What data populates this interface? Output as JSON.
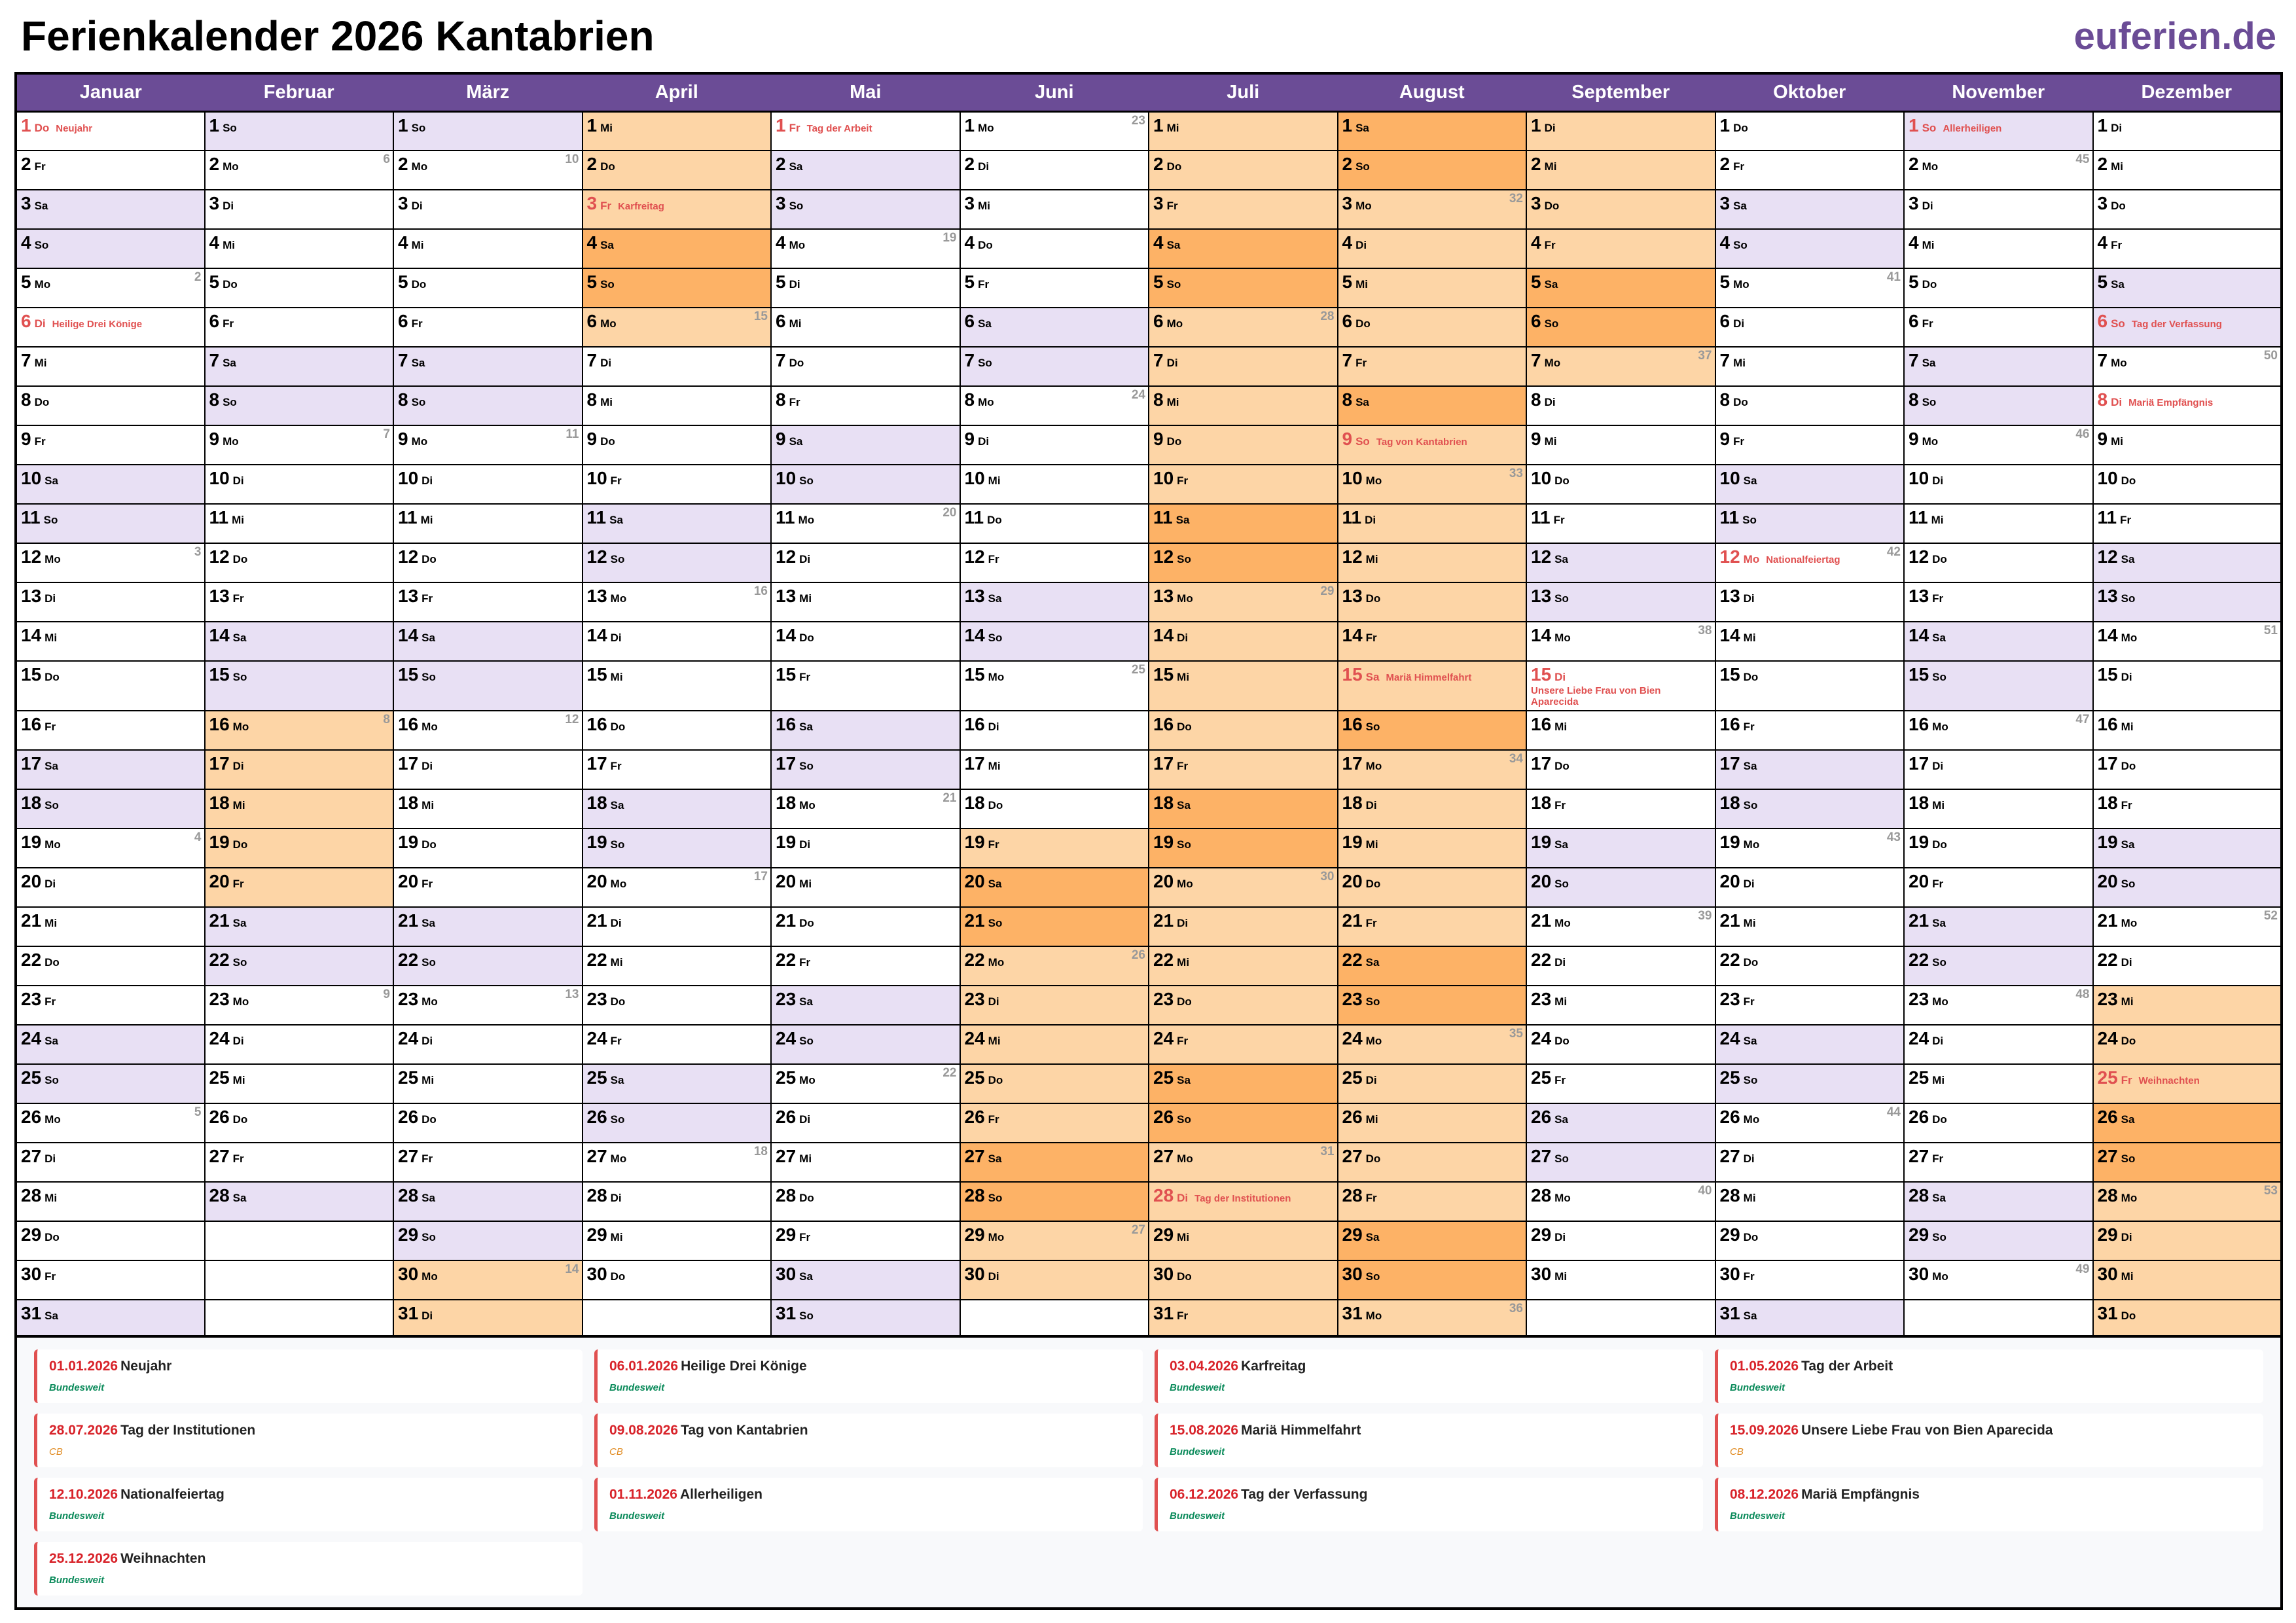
{
  "header": {
    "title": "Ferienkalender 2026 Kantabrien",
    "logo": "euferien.de"
  },
  "year": 2026,
  "months": [
    "Januar",
    "Februar",
    "März",
    "April",
    "Mai",
    "Juni",
    "Juli",
    "August",
    "September",
    "Oktober",
    "November",
    "Dezember"
  ],
  "weekdays": [
    "Mo",
    "Di",
    "Mi",
    "Do",
    "Fr",
    "Sa",
    "So"
  ],
  "colors": {
    "header": "#6b4c96",
    "weekend": "#e8e0f4",
    "vacation": "#fdd5a6",
    "vacation_weekend": "#fdb266",
    "holiday_text": "#e05050"
  },
  "vacations": [
    {
      "from": "2026-02-16",
      "to": "2026-02-20"
    },
    {
      "from": "2026-03-30",
      "to": "2026-04-06"
    },
    {
      "from": "2026-06-19",
      "to": "2026-09-07"
    },
    {
      "from": "2026-12-23",
      "to": "2026-12-31"
    }
  ],
  "holidays": [
    {
      "date": "01.01.2026",
      "name": "Neujahr",
      "region": "Bundesweit"
    },
    {
      "date": "06.01.2026",
      "name": "Heilige Drei Könige",
      "region": "Bundesweit"
    },
    {
      "date": "03.04.2026",
      "name": "Karfreitag",
      "region": "Bundesweit"
    },
    {
      "date": "01.05.2026",
      "name": "Tag der Arbeit",
      "region": "Bundesweit"
    },
    {
      "date": "28.07.2026",
      "name": "Tag der Institutionen",
      "region": "CB"
    },
    {
      "date": "09.08.2026",
      "name": "Tag von Kantabrien",
      "region": "CB"
    },
    {
      "date": "15.08.2026",
      "name": "Mariä Himmelfahrt",
      "region": "Bundesweit"
    },
    {
      "date": "15.09.2026",
      "name": "Unsere Liebe Frau von Bien Aparecida",
      "region": "CB"
    },
    {
      "date": "12.10.2026",
      "name": "Nationalfeiertag",
      "region": "Bundesweit"
    },
    {
      "date": "01.11.2026",
      "name": "Allerheiligen",
      "region": "Bundesweit"
    },
    {
      "date": "06.12.2026",
      "name": "Tag der Verfassung",
      "region": "Bundesweit"
    },
    {
      "date": "08.12.2026",
      "name": "Mariä Empfängnis",
      "region": "Bundesweit"
    },
    {
      "date": "25.12.2026",
      "name": "Weihnachten",
      "region": "Bundesweit"
    }
  ]
}
